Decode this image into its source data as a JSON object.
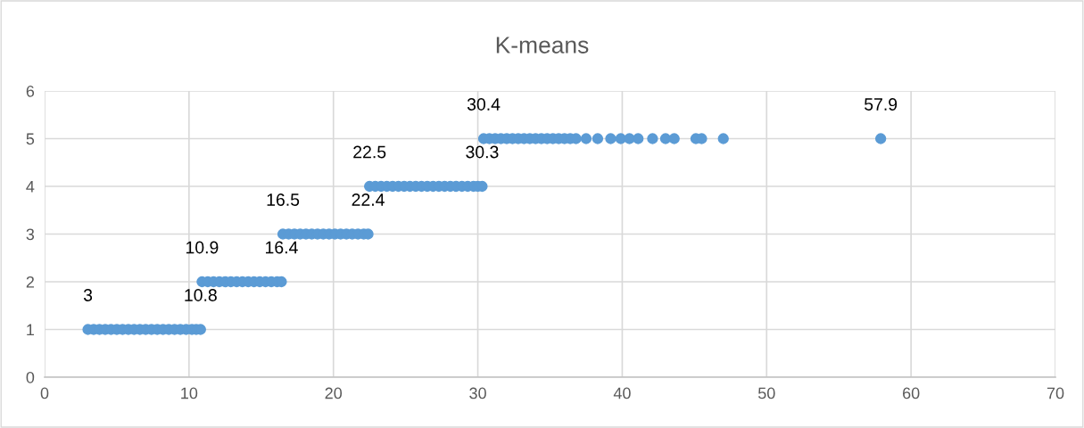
{
  "chart_data": {
    "type": "scatter",
    "title": "K-means",
    "series": [
      {
        "color": "#5b9bd5",
        "x": [
          3,
          3.4,
          3.8,
          4.2,
          4.6,
          5,
          5.4,
          5.8,
          6.2,
          6.6,
          7,
          7.4,
          7.8,
          8.2,
          8.6,
          9,
          9.4,
          9.8,
          10.2,
          10.5,
          10.8,
          10.9,
          11.3,
          11.7,
          12.1,
          12.5,
          12.9,
          13.3,
          13.7,
          14.1,
          14.5,
          14.9,
          15.3,
          15.7,
          16.1,
          16.4,
          16.5,
          16.9,
          17.3,
          17.7,
          18.1,
          18.5,
          18.9,
          19.3,
          19.7,
          20.1,
          20.5,
          20.9,
          21.3,
          21.7,
          22.1,
          22.4,
          22.5,
          22.9,
          23.3,
          23.7,
          24.1,
          24.5,
          24.9,
          25.3,
          25.7,
          26.1,
          26.5,
          26.9,
          27.3,
          27.7,
          28.1,
          28.5,
          28.9,
          29.3,
          29.7,
          30.0,
          30.3,
          30.4,
          30.8,
          31.2,
          31.6,
          32,
          32.4,
          32.8,
          33.2,
          33.6,
          34,
          34.4,
          34.8,
          35.2,
          35.6,
          36,
          36.4,
          36.8,
          37.5,
          38.3,
          39.2,
          39.9,
          40.5,
          41.1,
          42.1,
          43.0,
          43.6,
          45.1,
          45.5,
          47.0,
          57.9
        ],
        "values": [
          1,
          1,
          1,
          1,
          1,
          1,
          1,
          1,
          1,
          1,
          1,
          1,
          1,
          1,
          1,
          1,
          1,
          1,
          1,
          1,
          1,
          2,
          2,
          2,
          2,
          2,
          2,
          2,
          2,
          2,
          2,
          2,
          2,
          2,
          2,
          2,
          3,
          3,
          3,
          3,
          3,
          3,
          3,
          3,
          3,
          3,
          3,
          3,
          3,
          3,
          3,
          3,
          4,
          4,
          4,
          4,
          4,
          4,
          4,
          4,
          4,
          4,
          4,
          4,
          4,
          4,
          4,
          4,
          4,
          4,
          4,
          4,
          4,
          5,
          5,
          5,
          5,
          5,
          5,
          5,
          5,
          5,
          5,
          5,
          5,
          5,
          5,
          5,
          5,
          5,
          5,
          5,
          5,
          5,
          5,
          5,
          5,
          5,
          5,
          5,
          5,
          5,
          5
        ]
      }
    ],
    "annotations": [
      {
        "text": "3",
        "x": 3,
        "y": 1
      },
      {
        "text": "10.8",
        "x": 10.8,
        "y": 1
      },
      {
        "text": "10.9",
        "x": 10.9,
        "y": 2
      },
      {
        "text": "16.4",
        "x": 16.4,
        "y": 2
      },
      {
        "text": "16.5",
        "x": 16.5,
        "y": 3
      },
      {
        "text": "22.4",
        "x": 22.4,
        "y": 3
      },
      {
        "text": "22.5",
        "x": 22.5,
        "y": 4
      },
      {
        "text": "30.3",
        "x": 30.3,
        "y": 4
      },
      {
        "text": "30.4",
        "x": 30.4,
        "y": 5
      },
      {
        "text": "57.9",
        "x": 57.9,
        "y": 5
      }
    ],
    "xlim": [
      0,
      70
    ],
    "xticks": [
      0,
      10,
      20,
      30,
      40,
      50,
      60,
      70
    ],
    "ylim": [
      0,
      6
    ],
    "yticks": [
      0,
      1,
      2,
      3,
      4,
      5,
      6
    ],
    "grid": true,
    "marker": "circle"
  }
}
